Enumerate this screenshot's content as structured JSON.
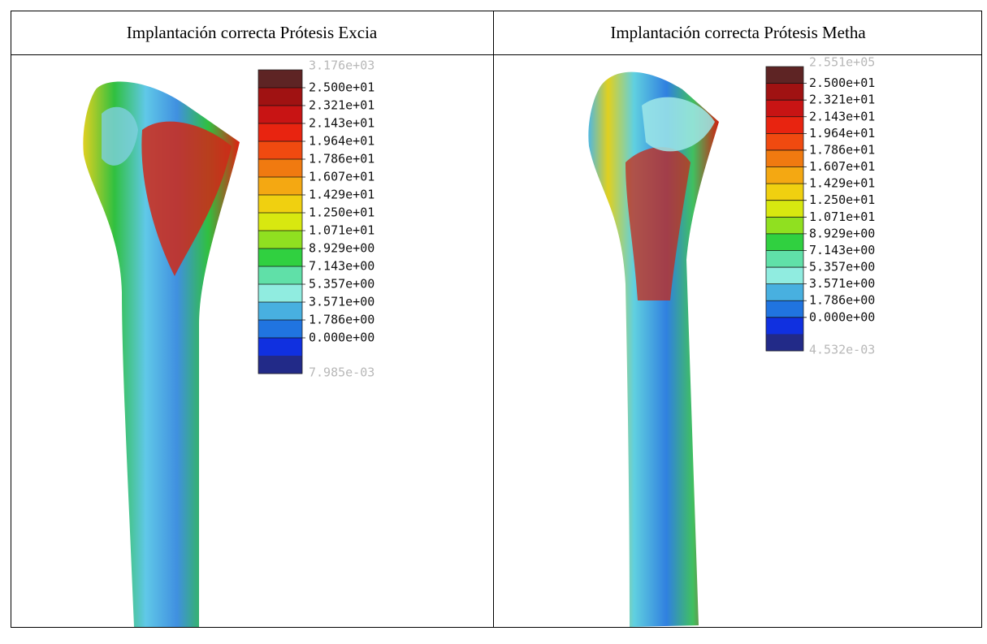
{
  "panels": [
    {
      "title": "Implantación correcta Prótesis Excia",
      "legend_labels": [
        "3.176e+03",
        "2.500e+01",
        "2.321e+01",
        "2.143e+01",
        "1.964e+01",
        "1.786e+01",
        "1.607e+01",
        "1.429e+01",
        "1.250e+01",
        "1.071e+01",
        "8.929e+00",
        "7.143e+00",
        "5.357e+00",
        "3.571e+00",
        "1.786e+00",
        "0.000e+00",
        "7.985e-03"
      ]
    },
    {
      "title": "Implantación correcta Prótesis Metha",
      "legend_labels": [
        "2.551e+05",
        "2.500e+01",
        "2.321e+01",
        "2.143e+01",
        "1.964e+01",
        "1.786e+01",
        "1.607e+01",
        "1.429e+01",
        "1.250e+01",
        "1.071e+01",
        "8.929e+00",
        "7.143e+00",
        "5.357e+00",
        "3.571e+00",
        "1.786e+00",
        "0.000e+00",
        "4.532e-03"
      ]
    }
  ]
}
